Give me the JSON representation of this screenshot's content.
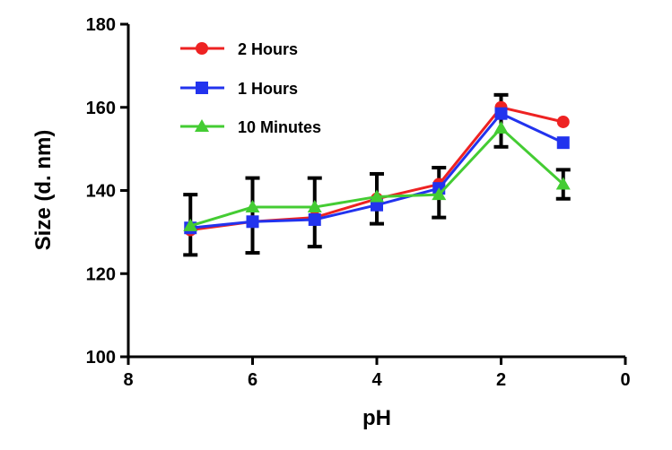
{
  "chart_data": {
    "type": "line",
    "title": "",
    "xlabel": "pH",
    "ylabel": "Size (d. nm)",
    "xlim": [
      8,
      0
    ],
    "ylim": [
      100,
      180
    ],
    "x_ticks": [
      "8",
      "6",
      "4",
      "2",
      "0"
    ],
    "y_ticks": [
      "100",
      "120",
      "140",
      "160",
      "180"
    ],
    "grid": false,
    "legend_position": "top-left",
    "x": [
      7,
      6,
      5,
      4,
      3,
      2,
      1
    ],
    "series": [
      {
        "name": "2 Hours",
        "color": "#ee2222",
        "marker": "circle",
        "values": [
          130.5,
          132.5,
          133.5,
          138,
          141.5,
          160,
          156.5
        ],
        "errors": [
          null,
          null,
          null,
          null,
          null,
          null,
          null
        ]
      },
      {
        "name": "1 Hours",
        "color": "#2233ee",
        "marker": "square",
        "values": [
          131,
          132.5,
          133,
          136.5,
          140.5,
          158.5,
          151.5
        ],
        "errors": [
          null,
          null,
          null,
          null,
          null,
          null,
          null
        ]
      },
      {
        "name": "10 Minutes",
        "color": "#44cc33",
        "marker": "triangle",
        "values": [
          131.5,
          136,
          136,
          138.5,
          139,
          155,
          141.5
        ],
        "errors": [
          null,
          null,
          null,
          null,
          null,
          null,
          null
        ]
      }
    ],
    "error_bars": [
      {
        "x": 7,
        "low": 124.5,
        "high": 139
      },
      {
        "x": 6,
        "low": 125,
        "high": 143
      },
      {
        "x": 5,
        "low": 126.5,
        "high": 143
      },
      {
        "x": 4,
        "low": 132,
        "high": 144
      },
      {
        "x": 3,
        "low": 133.5,
        "high": 145.5
      },
      {
        "x": 2,
        "low": 150.5,
        "high": 163
      },
      {
        "x": 1,
        "low": 138,
        "high": 145
      }
    ]
  }
}
